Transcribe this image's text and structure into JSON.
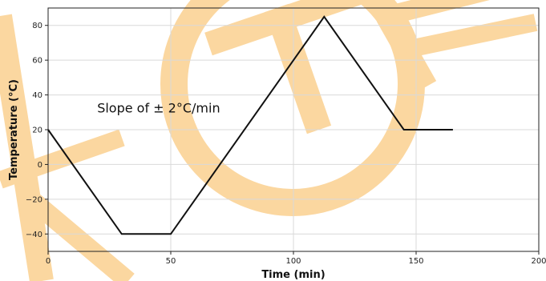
{
  "colors": {
    "line": "#111111",
    "grid": "#d9d9d9",
    "watermark": "#fbd7a0",
    "axis": "#222222"
  },
  "chart_data": {
    "type": "line",
    "title": "",
    "xlabel": "Time (min)",
    "ylabel": "Temperature (°C)",
    "xlim": [
      0,
      200
    ],
    "ylim": [
      -50,
      90
    ],
    "xticks": [
      0,
      50,
      100,
      150,
      200
    ],
    "yticks": [
      -40,
      -20,
      0,
      20,
      40,
      60,
      80
    ],
    "grid": true,
    "series": [
      {
        "x": [
          0,
          30,
          50,
          112.5,
          145,
          165
        ],
        "y": [
          20,
          -40,
          -40,
          85,
          20,
          20
        ]
      }
    ],
    "annotations": [
      {
        "text": "Slope of ± 2°C/min",
        "x": 20,
        "y": 30
      }
    ]
  }
}
